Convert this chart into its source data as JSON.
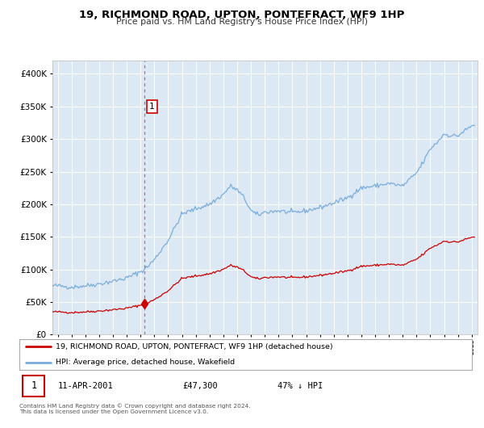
{
  "title": "19, RICHMOND ROAD, UPTON, PONTEFRACT, WF9 1HP",
  "subtitle": "Price paid vs. HM Land Registry's House Price Index (HPI)",
  "legend_line1": "19, RICHMOND ROAD, UPTON, PONTEFRACT, WF9 1HP (detached house)",
  "legend_line2": "HPI: Average price, detached house, Wakefield",
  "annotation_number": "1",
  "annotation_date": "11-APR-2001",
  "annotation_price": "£47,300",
  "annotation_hpi": "47% ↓ HPI",
  "sale_date_year": 2001.28,
  "sale_price": 47300,
  "copyright_line1": "Contains HM Land Registry data © Crown copyright and database right 2024.",
  "copyright_line2": "This data is licensed under the Open Government Licence v3.0.",
  "line_color_red": "#cc0000",
  "line_color_blue": "#7aaddb",
  "background_color": "#dce9f5",
  "grid_color": "#ffffff",
  "ylim": [
    0,
    420000
  ],
  "xlim_start": 1994.6,
  "xlim_end": 2025.4
}
